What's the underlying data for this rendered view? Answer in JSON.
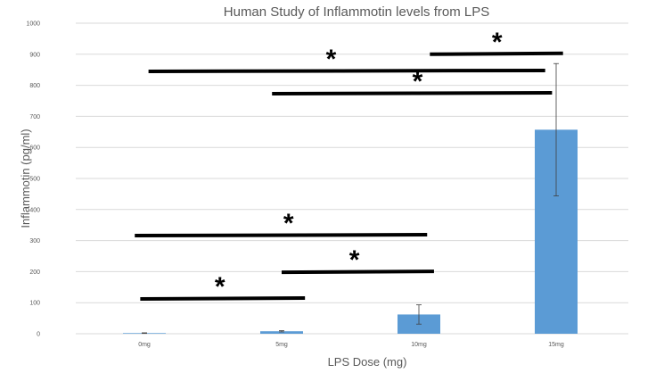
{
  "chart_data": {
    "type": "bar",
    "title": "Human Study of Inflammotin levels from LPS",
    "xlabel": "LPS Dose (mg)",
    "ylabel": "Inflammotin (pg/ml)",
    "categories": [
      "0mg",
      "5mg",
      "10mg",
      "15mg"
    ],
    "values": [
      2,
      8,
      62,
      657
    ],
    "error": [
      1,
      2,
      31,
      213
    ],
    "ylim": [
      0,
      1000
    ],
    "yticks": [
      "0",
      "100",
      "200",
      "300",
      "400",
      "500",
      "600",
      "700",
      "800",
      "900",
      "1000"
    ],
    "grid": true,
    "bar_color": "#5b9bd5",
    "significance": [
      {
        "from": 0.03,
        "to": 2.92,
        "y": 845,
        "star_at": 1.36,
        "label": "*"
      },
      {
        "from": 2.08,
        "to": 3.05,
        "y": 900,
        "star_at": 2.57,
        "label": "*"
      },
      {
        "from": 0.93,
        "to": 2.97,
        "y": 773,
        "star_at": 1.99,
        "label": "*"
      },
      {
        "from": -0.07,
        "to": 2.06,
        "y": 316,
        "star_at": 1.05,
        "label": "*"
      },
      {
        "from": 1.0,
        "to": 2.11,
        "y": 198,
        "star_at": 1.53,
        "label": "*"
      },
      {
        "from": -0.03,
        "to": 1.17,
        "y": 112,
        "star_at": 0.55,
        "label": "*"
      }
    ]
  }
}
